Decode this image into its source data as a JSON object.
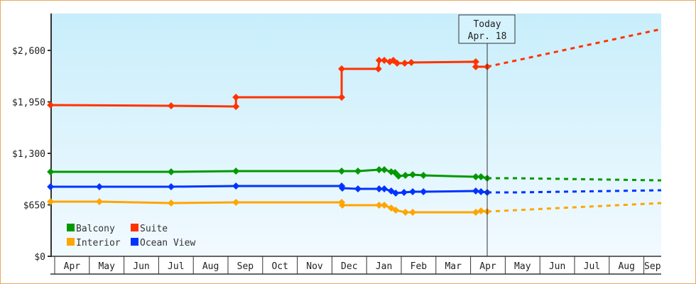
{
  "chart_data": {
    "type": "line",
    "title": "",
    "xlabel": "",
    "ylabel": "",
    "x_unit": "months since start of first April",
    "ylim": [
      0,
      3060
    ],
    "y_ticks": [
      0,
      650,
      1300,
      1950,
      2600
    ],
    "y_tick_labels": [
      "$0",
      "$650",
      "$1,300",
      "$1,950",
      "$2,600"
    ],
    "x_tick_labels": [
      "Apr",
      "May",
      "Jun",
      "Jul",
      "Aug",
      "Sep",
      "Oct",
      "Nov",
      "Dec",
      "Jan",
      "Feb",
      "Mar",
      "Apr",
      "May",
      "Jun",
      "Jul",
      "Aug",
      "Sep"
    ],
    "today": {
      "label": "Today",
      "date": "Apr. 18",
      "x": 12.48
    },
    "legend_position": "bottom-left",
    "series": [
      {
        "name": "Balcony",
        "color": "#009900",
        "points": [
          [
            -0.12,
            1067
          ],
          [
            3.36,
            1067
          ],
          [
            5.23,
            1076
          ],
          [
            8.28,
            1076
          ],
          [
            8.75,
            1076
          ],
          [
            9.36,
            1094
          ],
          [
            9.51,
            1094
          ],
          [
            9.71,
            1067
          ],
          [
            9.82,
            1058
          ],
          [
            9.92,
            1013
          ],
          [
            10.12,
            1022
          ],
          [
            10.33,
            1031
          ],
          [
            10.64,
            1022
          ],
          [
            12.15,
            1004
          ],
          [
            12.3,
            1004
          ],
          [
            12.48,
            986
          ]
        ],
        "forecast": [
          [
            12.48,
            986
          ],
          [
            13.3,
            986
          ],
          [
            17.5,
            959
          ]
        ]
      },
      {
        "name": "Suite",
        "color": "#ff3300",
        "points": [
          [
            -0.12,
            1910
          ],
          [
            3.36,
            1901
          ],
          [
            5.23,
            1892
          ],
          [
            5.23,
            2008
          ],
          [
            8.28,
            2008
          ],
          [
            8.28,
            2367
          ],
          [
            9.34,
            2367
          ],
          [
            9.36,
            2475
          ],
          [
            9.51,
            2475
          ],
          [
            9.67,
            2457
          ],
          [
            9.77,
            2475
          ],
          [
            9.88,
            2439
          ],
          [
            10.1,
            2439
          ],
          [
            10.29,
            2448
          ],
          [
            12.15,
            2457
          ],
          [
            12.15,
            2394
          ],
          [
            12.48,
            2394
          ]
        ],
        "forecast": [
          [
            12.48,
            2394
          ],
          [
            17.5,
            2869
          ]
        ]
      },
      {
        "name": "Interior",
        "color": "#ffa500",
        "points": [
          [
            -0.12,
            690
          ],
          [
            1.29,
            690
          ],
          [
            3.36,
            672
          ],
          [
            5.23,
            681
          ],
          [
            8.28,
            681
          ],
          [
            8.3,
            646
          ],
          [
            9.36,
            646
          ],
          [
            9.51,
            646
          ],
          [
            9.71,
            610
          ],
          [
            9.84,
            583
          ],
          [
            10.12,
            556
          ],
          [
            10.33,
            556
          ],
          [
            12.15,
            556
          ],
          [
            12.3,
            574
          ],
          [
            12.48,
            565
          ]
        ],
        "forecast": [
          [
            12.48,
            565
          ],
          [
            17.5,
            672
          ]
        ]
      },
      {
        "name": "Ocean View",
        "color": "#0033ff",
        "points": [
          [
            -0.12,
            879
          ],
          [
            1.29,
            879
          ],
          [
            3.36,
            879
          ],
          [
            5.23,
            888
          ],
          [
            8.28,
            888
          ],
          [
            8.3,
            861
          ],
          [
            8.75,
            852
          ],
          [
            9.36,
            852
          ],
          [
            9.51,
            852
          ],
          [
            9.71,
            825
          ],
          [
            9.84,
            798
          ],
          [
            10.08,
            807
          ],
          [
            10.33,
            816
          ],
          [
            10.64,
            816
          ],
          [
            12.15,
            825
          ],
          [
            12.3,
            816
          ],
          [
            12.48,
            807
          ]
        ],
        "forecast": [
          [
            12.48,
            807
          ],
          [
            13.3,
            807
          ],
          [
            17.5,
            834
          ]
        ]
      }
    ]
  }
}
